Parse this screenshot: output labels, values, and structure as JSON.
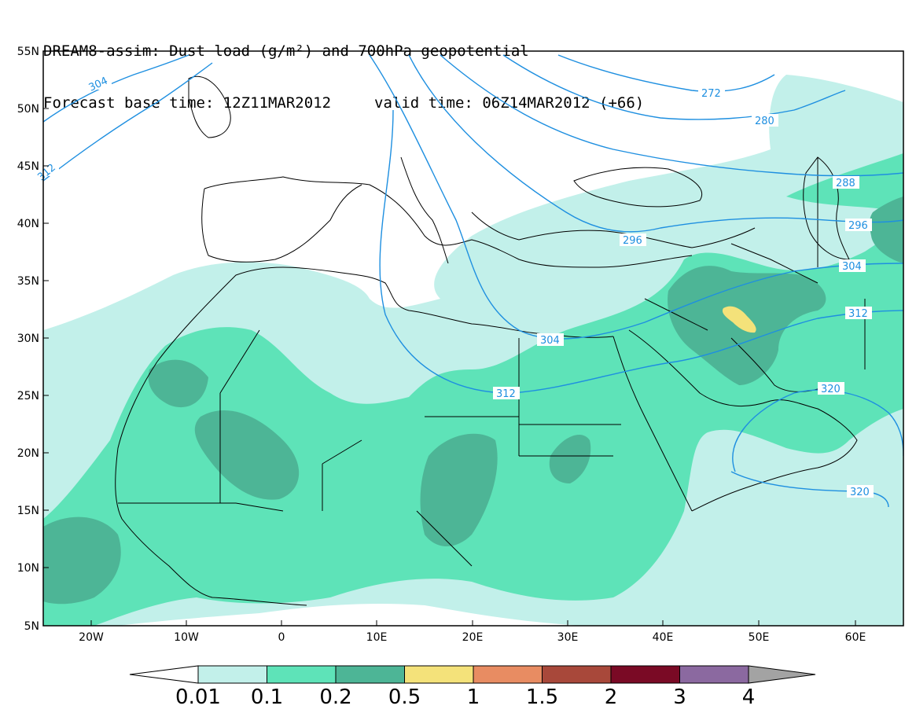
{
  "title": {
    "line1": "DREAM8-assim: Dust load (g/m²) and 700hPa geopotential",
    "base_time": "Forecast base time: 12Z11MAR2012",
    "valid_time": "valid time: 06Z14MAR2012 (+66)"
  },
  "axes": {
    "lat_labels": [
      "55N",
      "50N",
      "45N",
      "40N",
      "35N",
      "30N",
      "25N",
      "20N",
      "15N",
      "10N",
      "5N"
    ],
    "lon_labels": [
      "20W",
      "10W",
      "0",
      "10E",
      "20E",
      "30E",
      "40E",
      "50E",
      "60E"
    ]
  },
  "contour_labels": [
    "304",
    "312",
    "272",
    "280",
    "288",
    "296",
    "296",
    "304",
    "304",
    "312",
    "312",
    "320",
    "320"
  ],
  "colorbar": {
    "labels": [
      "0.01",
      "0.1",
      "0.2",
      "0.5",
      "1",
      "1.5",
      "2",
      "3",
      "4"
    ],
    "colors": [
      "#c2f0ea",
      "#5ee3b8",
      "#4db596",
      "#f4e27a",
      "#e88c62",
      "#a8483a",
      "#7a0a25",
      "#8b69a0",
      "#a3a3a3"
    ]
  },
  "colors": {
    "level1": "#c2f0ea",
    "level2": "#5ee3b8",
    "level3": "#4db596",
    "level4": "#f4e27a",
    "contour": "#1e8fe0"
  }
}
